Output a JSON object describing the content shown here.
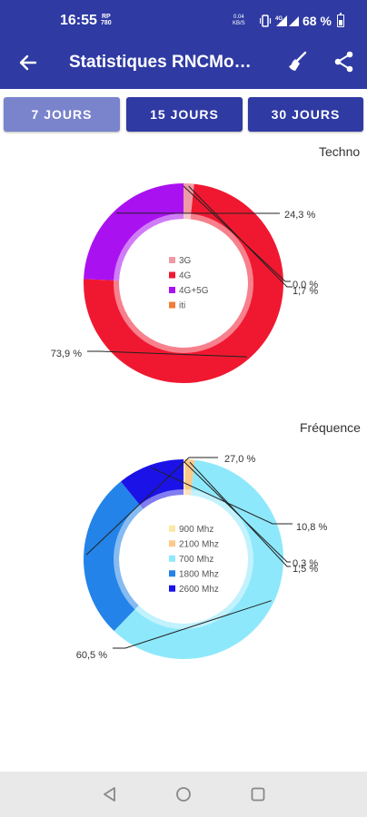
{
  "status_bar": {
    "time": "16:55",
    "rp_line1": "RP",
    "rp_line2": "780",
    "speed_line1": "0.04",
    "speed_line2": "KB/S",
    "battery": "68 %"
  },
  "app_bar": {
    "title": "Statistiques RNCMo…",
    "icons": [
      "arrow-left-icon",
      "broom-icon",
      "share-icon"
    ]
  },
  "tabs": [
    {
      "label": "7 JOURS",
      "selected": true
    },
    {
      "label": "15 JOURS",
      "selected": false
    },
    {
      "label": "30 JOURS",
      "selected": false
    }
  ],
  "chart_data": [
    {
      "type": "pie",
      "title": "Techno",
      "categories": [
        "3G",
        "4G",
        "4G+5G",
        "iti"
      ],
      "values": [
        1.7,
        73.9,
        24.3,
        0.0
      ],
      "value_labels": [
        "1,7 %",
        "73,9 %",
        "24,3 %",
        "0,0 %"
      ],
      "colors": [
        "#f09aa6",
        "#f01830",
        "#aa11f0",
        "#f07d3a"
      ],
      "legend_placement": "center"
    },
    {
      "type": "pie",
      "title": "Fréquence",
      "categories": [
        "900 Mhz",
        "2100 Mhz",
        "700 Mhz",
        "1800 Mhz",
        "2600 Mhz"
      ],
      "values": [
        0.3,
        1.5,
        60.5,
        27.0,
        10.8
      ],
      "value_labels": [
        "0,3 %",
        "1,5 %",
        "60,5 %",
        "27,0 %",
        "10,8 %"
      ],
      "colors": [
        "#fbe7a6",
        "#fbc98c",
        "#8ee8fb",
        "#2383e8",
        "#1a12e6"
      ],
      "legend_placement": "center"
    }
  ],
  "nav_bar": {
    "icons": [
      "back-triangle-icon",
      "home-circle-icon",
      "recents-square-icon"
    ]
  }
}
